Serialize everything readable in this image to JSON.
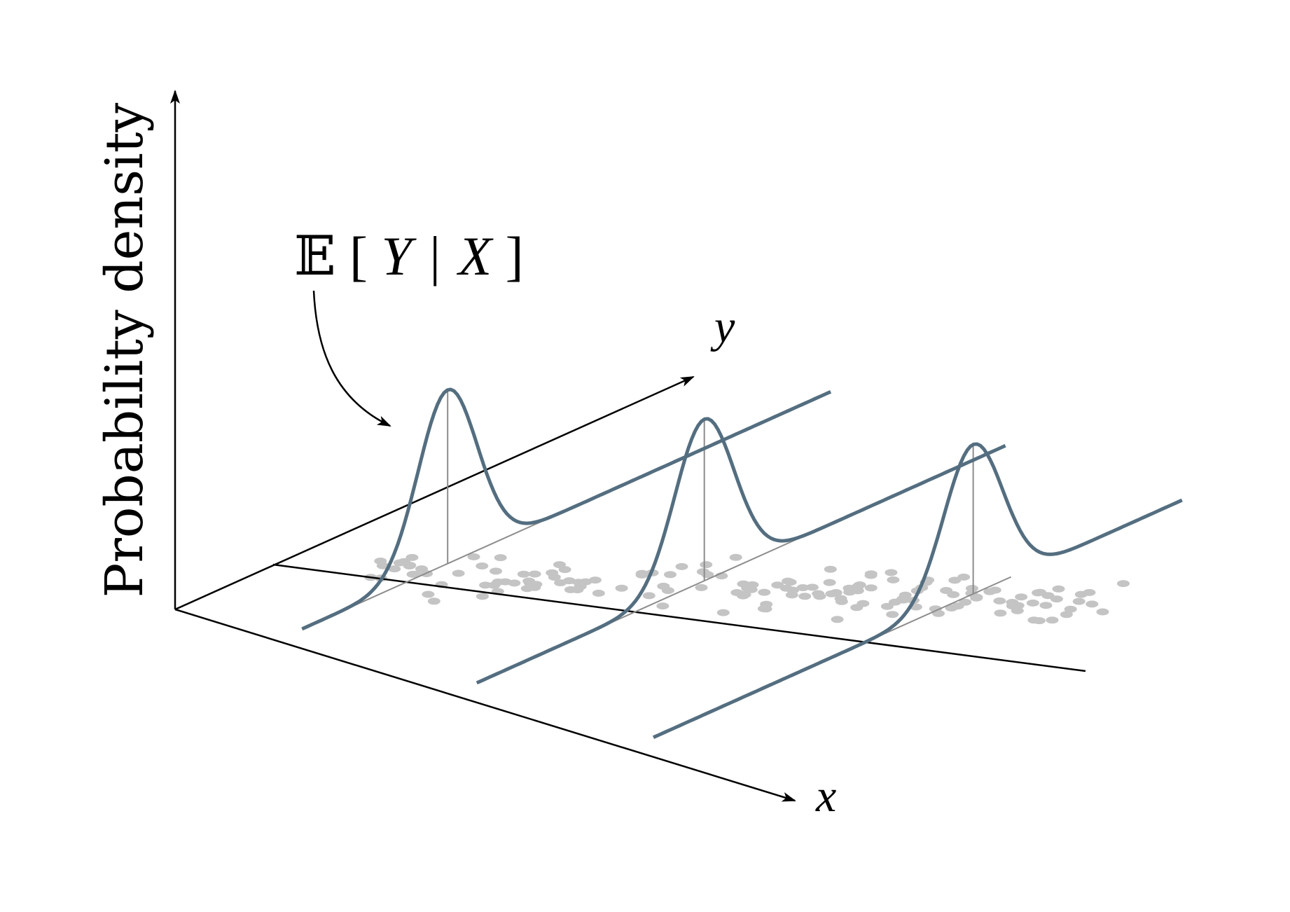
{
  "labels": {
    "vertical_axis": "Probability density",
    "x_axis": "x",
    "y_axis": "y",
    "annotation": {
      "bb": "𝔼",
      "open": "[",
      "Y": "Y",
      "bar": "|",
      "X": "X",
      "close": "]"
    }
  },
  "colors": {
    "axis": "#000000",
    "curve": "#546e80",
    "regression_line": "#000000",
    "guide": "#8c8c8c",
    "scatter": "#c4c4c4"
  },
  "diagram": {
    "slices": 3,
    "points_per_row": 54
  }
}
